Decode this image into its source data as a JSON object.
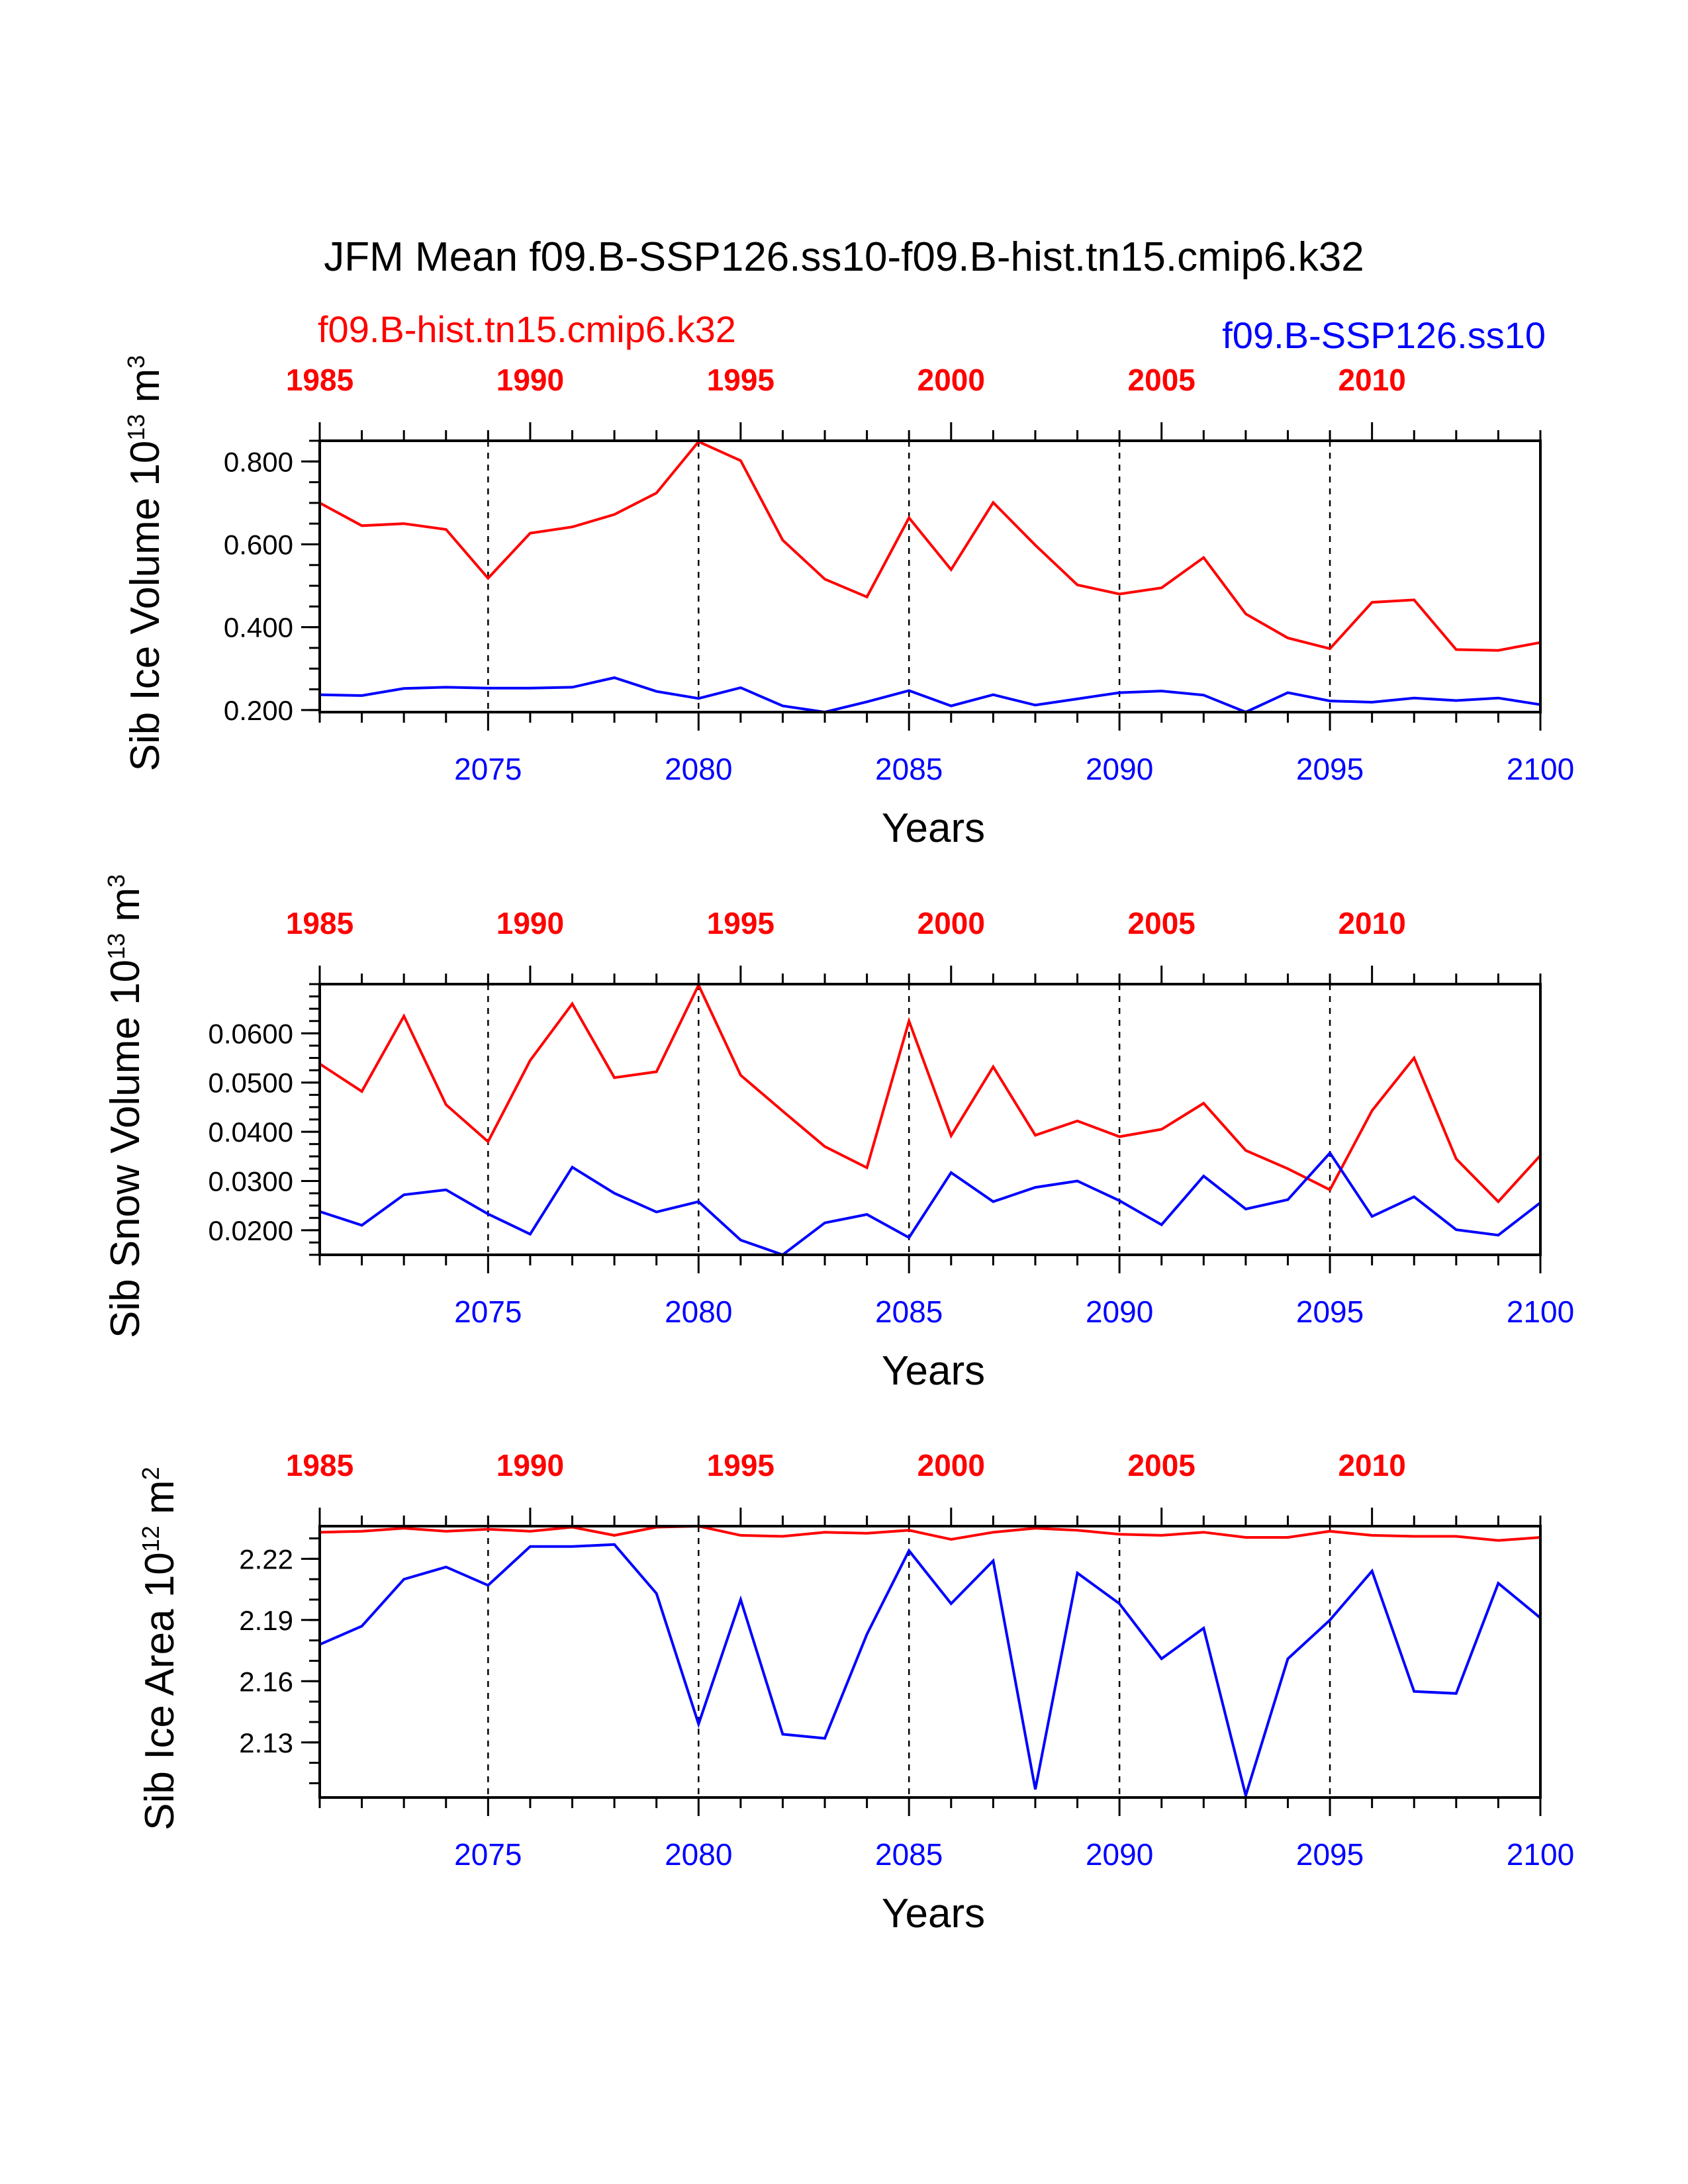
{
  "title": "JFM Mean f09.B-SSP126.ss10-f09.B-hist.tn15.cmip6.k32",
  "legend": {
    "hist": "f09.B-hist.tn15.cmip6.k32",
    "ssp": "f09.B-SSP126.ss10"
  },
  "colors": {
    "hist": "#ff0000",
    "ssp": "#0000ff",
    "axis": "#000000"
  },
  "chart_data": [
    {
      "type": "line",
      "ylabel": "Sib Ice Volume 10",
      "ylabel_exp": "13",
      "ylabel_unit": " m",
      "ylabel_unit_exp": "3",
      "xlabel": "Years",
      "x_bottom": {
        "range": [
          2071,
          2100
        ],
        "ticks": [
          2075,
          2080,
          2085,
          2090,
          2095,
          2100
        ],
        "tick_labels": [
          "2075",
          "2080",
          "2085",
          "2090",
          "2095",
          "2100"
        ]
      },
      "x_top": {
        "range": [
          1985,
          2014
        ],
        "ticks": [
          1985,
          1990,
          1995,
          2000,
          2005,
          2010
        ],
        "tick_labels": [
          "1985",
          "1990",
          "1995",
          "2000",
          "2005",
          "2010"
        ]
      },
      "ylim": [
        0.195,
        0.85
      ],
      "yticks": [
        0.2,
        0.4,
        0.6,
        0.8
      ],
      "ytick_labels": [
        "0.200",
        "0.400",
        "0.600",
        "0.800"
      ],
      "yminor_step": 0.05,
      "series": [
        {
          "name": "f09.B-hist.tn15.cmip6.k32",
          "x": [
            1985,
            1986,
            1987,
            1988,
            1989,
            1990,
            1991,
            1992,
            1993,
            1994,
            1995,
            1996,
            1997,
            1998,
            1999,
            2000,
            2001,
            2002,
            2003,
            2004,
            2005,
            2006,
            2007,
            2008,
            2009,
            2010,
            2011,
            2012,
            2013,
            2014
          ],
          "values": [
            0.7,
            0.645,
            0.65,
            0.636,
            0.518,
            0.627,
            0.642,
            0.672,
            0.724,
            0.848,
            0.802,
            0.61,
            0.516,
            0.473,
            0.664,
            0.539,
            0.701,
            0.598,
            0.502,
            0.48,
            0.495,
            0.568,
            0.432,
            0.374,
            0.348,
            0.46,
            0.466,
            0.346,
            0.344,
            0.363
          ]
        },
        {
          "name": "f09.B-SSP126.ss10",
          "x": [
            2071,
            2072,
            2073,
            2074,
            2075,
            2076,
            2077,
            2078,
            2079,
            2080,
            2081,
            2082,
            2083,
            2084,
            2085,
            2086,
            2087,
            2088,
            2089,
            2090,
            2091,
            2092,
            2093,
            2094,
            2095,
            2096,
            2097,
            2098,
            2099,
            2100
          ],
          "values": [
            0.237,
            0.235,
            0.252,
            0.255,
            0.253,
            0.253,
            0.255,
            0.278,
            0.245,
            0.228,
            0.254,
            0.21,
            0.195,
            0.22,
            0.247,
            0.21,
            0.237,
            0.212,
            0.227,
            0.242,
            0.246,
            0.236,
            0.195,
            0.242,
            0.222,
            0.219,
            0.229,
            0.223,
            0.229,
            0.213
          ]
        }
      ]
    },
    {
      "type": "line",
      "ylabel": "Sib Snow Volume 10",
      "ylabel_exp": "13",
      "ylabel_unit": " m",
      "ylabel_unit_exp": "3",
      "xlabel": "Years",
      "x_bottom": {
        "range": [
          2071,
          2100
        ],
        "ticks": [
          2075,
          2080,
          2085,
          2090,
          2095,
          2100
        ],
        "tick_labels": [
          "2075",
          "2080",
          "2085",
          "2090",
          "2095",
          "2100"
        ]
      },
      "x_top": {
        "range": [
          1985,
          2014
        ],
        "ticks": [
          1985,
          1990,
          1995,
          2000,
          2005,
          2010
        ],
        "tick_labels": [
          "1985",
          "1990",
          "1995",
          "2000",
          "2005",
          "2010"
        ]
      },
      "ylim": [
        0.015,
        0.07
      ],
      "yticks": [
        0.02,
        0.03,
        0.04,
        0.05,
        0.06
      ],
      "ytick_labels": [
        "0.0200",
        "0.0300",
        "0.0400",
        "0.0500",
        "0.0600"
      ],
      "yminor_step": 0.0025,
      "series": [
        {
          "name": "f09.B-hist.tn15.cmip6.k32",
          "x": [
            1985,
            1986,
            1987,
            1988,
            1989,
            1990,
            1991,
            1992,
            1993,
            1994,
            1995,
            1996,
            1997,
            1998,
            1999,
            2000,
            2001,
            2002,
            2003,
            2004,
            2005,
            2006,
            2007,
            2008,
            2009,
            2010,
            2011,
            2012,
            2013,
            2014
          ],
          "values": [
            0.0538,
            0.0482,
            0.0635,
            0.0455,
            0.038,
            0.0545,
            0.066,
            0.051,
            0.0522,
            0.0698,
            0.0515,
            0.0442,
            0.037,
            0.0327,
            0.0625,
            0.0392,
            0.0532,
            0.0393,
            0.0422,
            0.039,
            0.0405,
            0.0458,
            0.0362,
            0.0325,
            0.0282,
            0.0443,
            0.055,
            0.0345,
            0.0258,
            0.0352
          ]
        },
        {
          "name": "f09.B-SSP126.ss10",
          "x": [
            2071,
            2072,
            2073,
            2074,
            2075,
            2076,
            2077,
            2078,
            2079,
            2080,
            2081,
            2082,
            2083,
            2084,
            2085,
            2086,
            2087,
            2088,
            2089,
            2090,
            2091,
            2092,
            2093,
            2094,
            2095,
            2096,
            2097,
            2098,
            2099,
            2100
          ],
          "values": [
            0.0238,
            0.021,
            0.0272,
            0.0282,
            0.0233,
            0.0192,
            0.0328,
            0.0275,
            0.0237,
            0.0258,
            0.018,
            0.015,
            0.0215,
            0.0232,
            0.0185,
            0.0317,
            0.0258,
            0.0287,
            0.03,
            0.026,
            0.0211,
            0.031,
            0.0243,
            0.0262,
            0.0357,
            0.0228,
            0.0268,
            0.0201,
            0.019,
            0.0256
          ]
        }
      ]
    },
    {
      "type": "line",
      "ylabel": "Sib Ice Area 10",
      "ylabel_exp": "12",
      "ylabel_unit": " m",
      "ylabel_unit_exp": "2",
      "xlabel": "Years",
      "x_bottom": {
        "range": [
          2071,
          2100
        ],
        "ticks": [
          2075,
          2080,
          2085,
          2090,
          2095,
          2100
        ],
        "tick_labels": [
          "2075",
          "2080",
          "2085",
          "2090",
          "2095",
          "2100"
        ]
      },
      "x_top": {
        "range": [
          1985,
          2014
        ],
        "ticks": [
          1985,
          1990,
          1995,
          2000,
          2005,
          2010
        ],
        "tick_labels": [
          "1985",
          "1990",
          "1995",
          "2000",
          "2005",
          "2010"
        ]
      },
      "ylim": [
        2.103,
        2.236
      ],
      "yticks": [
        2.13,
        2.16,
        2.19,
        2.22
      ],
      "ytick_labels": [
        "2.13",
        "2.16",
        "2.19",
        "2.22"
      ],
      "yminor_step": 0.01,
      "series": [
        {
          "name": "f09.B-hist.tn15.cmip6.k32",
          "x": [
            1985,
            1986,
            1987,
            1988,
            1989,
            1990,
            1991,
            1992,
            1993,
            1994,
            1995,
            1996,
            1997,
            1998,
            1999,
            2000,
            2001,
            2002,
            2003,
            2004,
            2005,
            2006,
            2007,
            2008,
            2009,
            2010,
            2011,
            2012,
            2013,
            2014
          ],
          "values": [
            2.233,
            2.2335,
            2.235,
            2.2335,
            2.2345,
            2.2335,
            2.2355,
            2.2315,
            2.2355,
            2.236,
            2.2315,
            2.231,
            2.233,
            2.2325,
            2.234,
            2.2295,
            2.233,
            2.235,
            2.234,
            2.232,
            2.2315,
            2.233,
            2.2305,
            2.2305,
            2.2335,
            2.2315,
            2.231,
            2.231,
            2.229,
            2.2305
          ]
        },
        {
          "name": "f09.B-SSP126.ss10",
          "x": [
            2071,
            2072,
            2073,
            2074,
            2075,
            2076,
            2077,
            2078,
            2079,
            2080,
            2081,
            2082,
            2083,
            2084,
            2085,
            2086,
            2087,
            2088,
            2089,
            2090,
            2091,
            2092,
            2093,
            2094,
            2095,
            2096,
            2097,
            2098,
            2099,
            2100
          ],
          "values": [
            2.178,
            2.187,
            2.21,
            2.216,
            2.207,
            2.226,
            2.226,
            2.227,
            2.203,
            2.139,
            2.2,
            2.134,
            2.132,
            2.183,
            2.224,
            2.198,
            2.219,
            2.107,
            2.213,
            2.198,
            2.171,
            2.186,
            2.104,
            2.171,
            2.19,
            2.214,
            2.155,
            2.154,
            2.208,
            2.191
          ]
        }
      ]
    }
  ]
}
